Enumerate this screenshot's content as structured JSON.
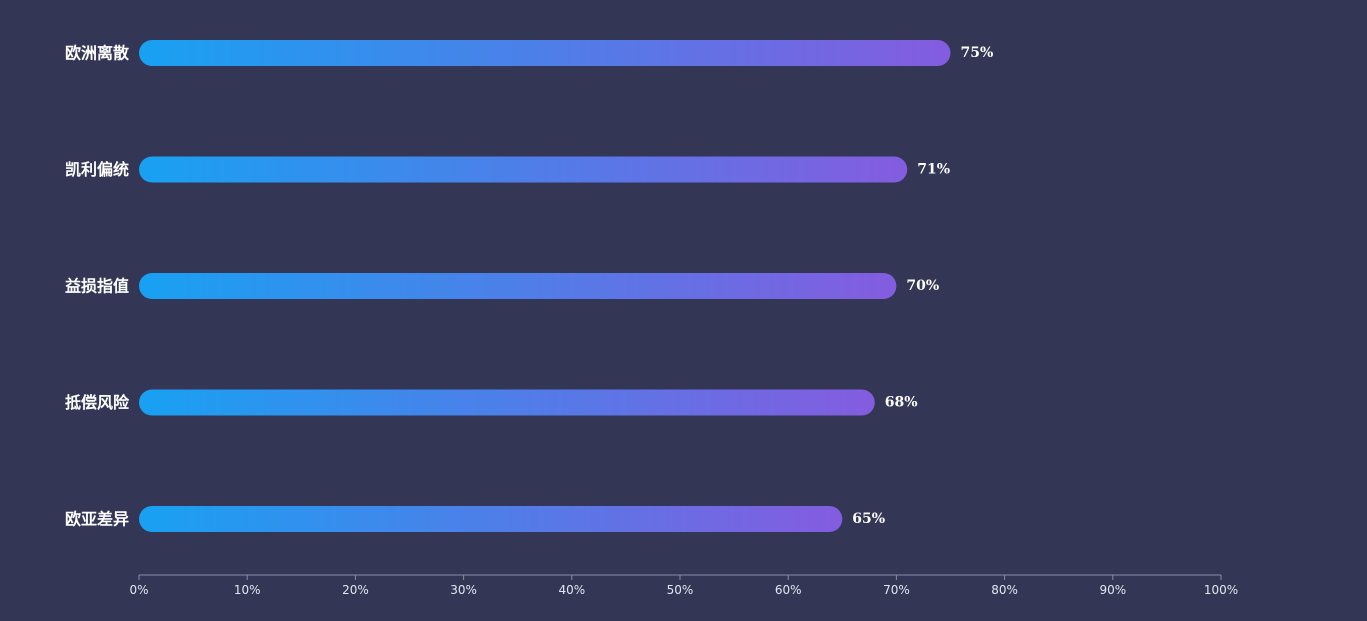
{
  "chart_data": {
    "type": "bar",
    "orientation": "horizontal",
    "categories": [
      "欧洲离散",
      "凯利偏统",
      "益损指值",
      "抵偿风险",
      "欧亚差异"
    ],
    "values": [
      75,
      71,
      70,
      68,
      65
    ],
    "value_labels": [
      "75%",
      "71%",
      "70%",
      "68%",
      "65%"
    ],
    "xlim": [
      0,
      100
    ],
    "xticks": [
      0,
      10,
      20,
      30,
      40,
      50,
      60,
      70,
      80,
      90,
      100
    ],
    "xtick_labels": [
      "0%",
      "10%",
      "20%",
      "30%",
      "40%",
      "50%",
      "60%",
      "70%",
      "80%",
      "90%",
      "100%"
    ],
    "grid": false,
    "colors": {
      "background": "#343655",
      "bar_gradient_start": "#18a1f2",
      "bar_gradient_end": "#845cdf",
      "axis_line": "#8a8ca6",
      "text": "#ffffff"
    }
  }
}
